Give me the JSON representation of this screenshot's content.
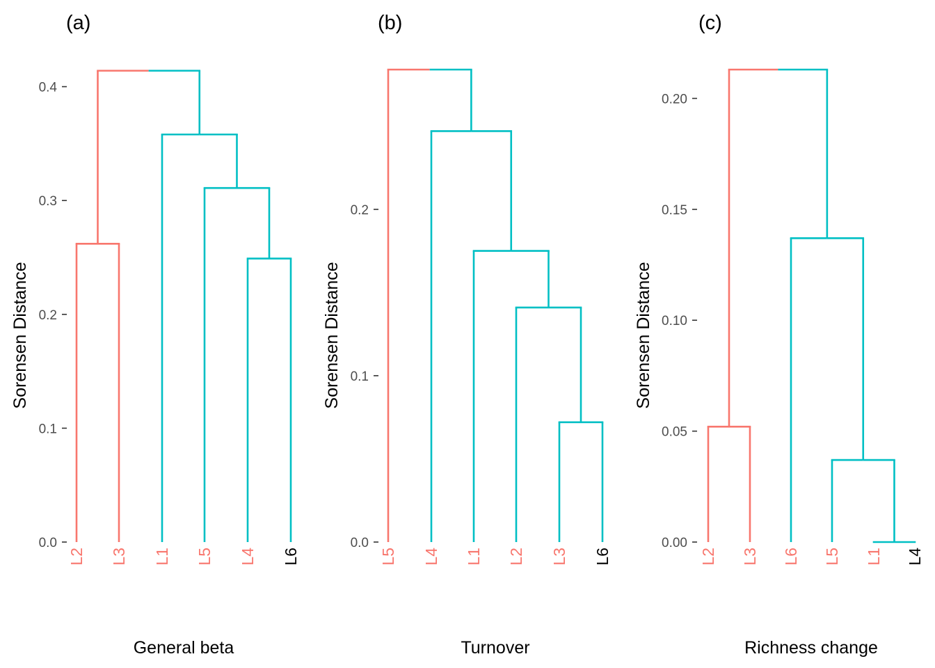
{
  "colors": {
    "group1": "#F8766D",
    "group2": "#00BFC4",
    "neutral": "#000000",
    "tick_text": "#4d4d4d"
  },
  "chart_data": [
    {
      "type": "dendrogram",
      "panel_label": "(a)",
      "xlabel": "General beta",
      "ylabel": "Sorensen Distance",
      "ylim": [
        0,
        0.415
      ],
      "yticks": [
        "0.0",
        "0.1",
        "0.2",
        "0.3",
        "0.4"
      ],
      "ytick_values": [
        0,
        0.1,
        0.2,
        0.3,
        0.4
      ],
      "leaves": [
        {
          "label": "L2",
          "color": "#F8766D"
        },
        {
          "label": "L3",
          "color": "#F8766D"
        },
        {
          "label": "L1",
          "color": "#F8766D"
        },
        {
          "label": "L5",
          "color": "#F8766D"
        },
        {
          "label": "L4",
          "color": "#F8766D"
        },
        {
          "label": "L6",
          "color": "#000000"
        }
      ],
      "merges": [
        {
          "left": [
            0
          ],
          "right": [
            1
          ],
          "height": 0.262,
          "color": "#F8766D"
        },
        {
          "left": [
            4
          ],
          "right": [
            5
          ],
          "height": 0.249,
          "color": "#00BFC4"
        },
        {
          "left": [
            3
          ],
          "right": [
            4,
            5
          ],
          "height": 0.311,
          "color": "#00BFC4"
        },
        {
          "left": [
            2
          ],
          "right": [
            3,
            4,
            5
          ],
          "height": 0.358,
          "color": "#00BFC4"
        },
        {
          "left": [
            0,
            1
          ],
          "right": [
            2,
            3,
            4,
            5
          ],
          "height": 0.414,
          "color": "#F8766D",
          "right_color": "#00BFC4"
        }
      ]
    },
    {
      "type": "dendrogram",
      "panel_label": "(b)",
      "xlabel": "Turnover",
      "ylabel": "Sorensen Distance",
      "ylim": [
        0,
        0.284
      ],
      "yticks": [
        "0.0",
        "0.1",
        "0.2"
      ],
      "ytick_values": [
        0,
        0.1,
        0.2
      ],
      "leaves": [
        {
          "label": "L5",
          "color": "#F8766D"
        },
        {
          "label": "L4",
          "color": "#F8766D"
        },
        {
          "label": "L1",
          "color": "#F8766D"
        },
        {
          "label": "L2",
          "color": "#F8766D"
        },
        {
          "label": "L3",
          "color": "#F8766D"
        },
        {
          "label": "L6",
          "color": "#000000"
        }
      ],
      "merges": [
        {
          "left": [
            4
          ],
          "right": [
            5
          ],
          "height": 0.072,
          "color": "#00BFC4"
        },
        {
          "left": [
            3
          ],
          "right": [
            4,
            5
          ],
          "height": 0.141,
          "color": "#00BFC4"
        },
        {
          "left": [
            2
          ],
          "right": [
            3,
            4,
            5
          ],
          "height": 0.175,
          "color": "#00BFC4"
        },
        {
          "left": [
            1
          ],
          "right": [
            2,
            3,
            4,
            5
          ],
          "height": 0.247,
          "color": "#00BFC4"
        },
        {
          "left": [
            0
          ],
          "right": [
            1,
            2,
            3,
            4,
            5
          ],
          "height": 0.284,
          "color": "#F8766D",
          "right_color": "#00BFC4"
        }
      ]
    },
    {
      "type": "dendrogram",
      "panel_label": "(c)",
      "xlabel": "Richness change",
      "ylabel": "Sorensen Distance",
      "ylim": [
        0,
        0.213
      ],
      "yticks": [
        "0.00",
        "0.05",
        "0.10",
        "0.15",
        "0.20"
      ],
      "ytick_values": [
        0,
        0.05,
        0.1,
        0.15,
        0.2
      ],
      "leaves": [
        {
          "label": "L2",
          "color": "#F8766D"
        },
        {
          "label": "L3",
          "color": "#F8766D"
        },
        {
          "label": "L6",
          "color": "#F8766D"
        },
        {
          "label": "L5",
          "color": "#F8766D"
        },
        {
          "label": "L1",
          "color": "#F8766D"
        },
        {
          "label": "L4",
          "color": "#000000"
        }
      ],
      "merges": [
        {
          "left": [
            0
          ],
          "right": [
            1
          ],
          "height": 0.052,
          "color": "#F8766D"
        },
        {
          "left": [
            4
          ],
          "right": [
            5
          ],
          "height": 0.0,
          "color": "#00BFC4"
        },
        {
          "left": [
            3
          ],
          "right": [
            4,
            5
          ],
          "height": 0.037,
          "color": "#00BFC4"
        },
        {
          "left": [
            2
          ],
          "right": [
            3,
            4,
            5
          ],
          "height": 0.137,
          "color": "#00BFC4"
        },
        {
          "left": [
            0,
            1
          ],
          "right": [
            2,
            3,
            4,
            5
          ],
          "height": 0.213,
          "color": "#F8766D",
          "right_color": "#00BFC4"
        }
      ]
    }
  ]
}
